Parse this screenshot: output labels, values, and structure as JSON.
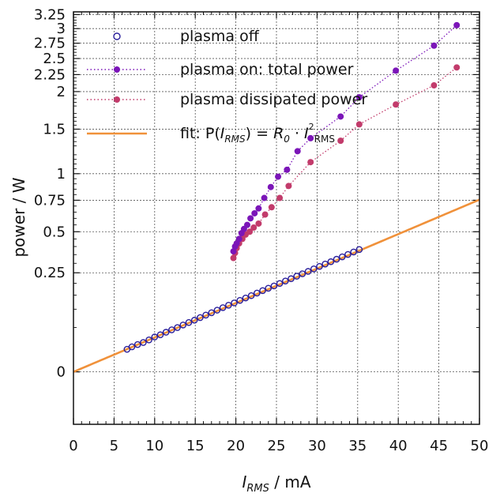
{
  "chart_data": {
    "type": "scatter",
    "xlabel": {
      "symbol": "I",
      "sub": "RMS",
      "rest": " / mA"
    },
    "ylabel": "power / W",
    "xlim": [
      0,
      50
    ],
    "ylim": [
      -0.07,
      3.3
    ],
    "y_scale": "sqrt",
    "grid": true,
    "legend_position": "top",
    "x_ticks": [
      "0",
      "5",
      "10",
      "15",
      "20",
      "25",
      "30",
      "35",
      "40",
      "45",
      "50"
    ],
    "y_ticks": [
      "0",
      "0.25",
      "0.5",
      "0.75",
      "1",
      "1.5",
      "2",
      "2.25",
      "2.5",
      "2.75",
      "3",
      "3.25"
    ],
    "series": [
      {
        "name": "plasma off",
        "color": "#2a1f9c",
        "marker": "open-circle",
        "line": "none",
        "x": [
          6.6,
          7.2,
          7.9,
          8.6,
          9.3,
          10.0,
          10.7,
          11.4,
          12.1,
          12.8,
          13.5,
          14.2,
          14.9,
          15.6,
          16.3,
          17.0,
          17.7,
          18.4,
          19.1,
          19.8,
          20.5,
          21.2,
          21.9,
          22.6,
          23.3,
          24.0,
          24.7,
          25.4,
          26.1,
          26.8,
          27.5,
          28.2,
          28.9,
          29.6,
          30.3,
          31.0,
          31.7,
          32.4,
          33.1,
          33.8,
          34.5,
          35.2
        ],
        "y": [
          0.013,
          0.016,
          0.019,
          0.022,
          0.026,
          0.031,
          0.035,
          0.04,
          0.045,
          0.05,
          0.056,
          0.062,
          0.068,
          0.075,
          0.082,
          0.089,
          0.097,
          0.105,
          0.113,
          0.121,
          0.13,
          0.139,
          0.148,
          0.158,
          0.168,
          0.178,
          0.188,
          0.199,
          0.21,
          0.221,
          0.233,
          0.245,
          0.257,
          0.27,
          0.283,
          0.296,
          0.309,
          0.323,
          0.337,
          0.351,
          0.366,
          0.381
        ]
      },
      {
        "name": "plasma on: total power",
        "color": "#7b15b8",
        "marker": "filled-circle",
        "line": "dotted",
        "x": [
          19.7,
          19.9,
          20.1,
          20.4,
          20.7,
          21.0,
          21.4,
          21.8,
          22.3,
          22.8,
          23.5,
          24.3,
          25.2,
          26.3,
          27.6,
          29.2,
          32.9,
          35.2,
          39.7,
          44.4,
          47.2
        ],
        "y": [
          0.37,
          0.4,
          0.42,
          0.45,
          0.49,
          0.52,
          0.55,
          0.6,
          0.64,
          0.68,
          0.77,
          0.87,
          0.97,
          1.04,
          1.24,
          1.39,
          1.66,
          1.92,
          2.31,
          2.71,
          3.06
        ]
      },
      {
        "name": "plasma dissipated power",
        "color": "#c23b6b",
        "marker": "filled-circle",
        "line": "dotted",
        "x": [
          19.7,
          19.9,
          20.1,
          20.4,
          20.8,
          21.2,
          21.7,
          22.2,
          22.8,
          23.6,
          24.4,
          25.4,
          26.5,
          29.2,
          32.9,
          35.2,
          39.7,
          44.4,
          47.2
        ],
        "y": [
          0.33,
          0.36,
          0.39,
          0.42,
          0.45,
          0.48,
          0.5,
          0.53,
          0.56,
          0.63,
          0.69,
          0.77,
          0.88,
          1.12,
          1.36,
          1.56,
          1.82,
          2.09,
          2.36
        ]
      },
      {
        "name_parts": {
          "prefix": "fit: P(",
          "i1": "I",
          "s1": "RMS",
          "mid": ") = ",
          "r": "R",
          "r_sub": "0",
          "dot": " · ",
          "i2": "I",
          "sup": "2",
          "s2": "RMS"
        },
        "color": "#f0913a",
        "marker": "none",
        "line": "solid",
        "coefficient": 0.000302,
        "x_range": [
          0,
          50
        ]
      }
    ]
  }
}
